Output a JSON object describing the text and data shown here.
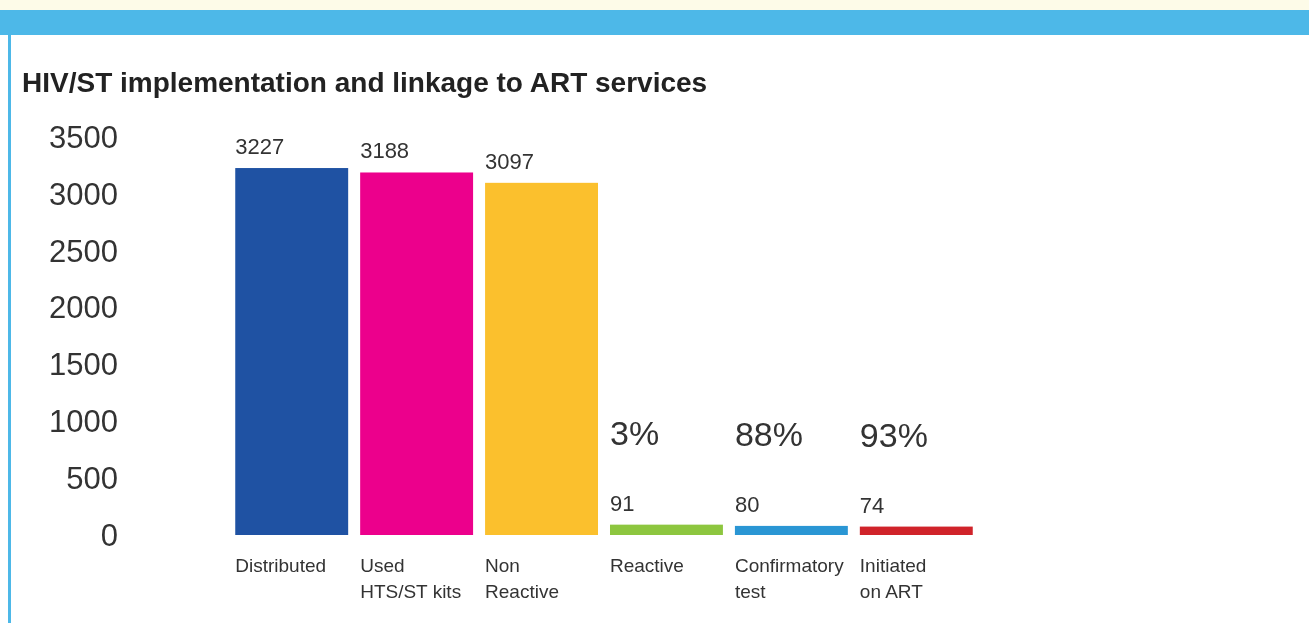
{
  "chart_data": {
    "type": "bar",
    "title": "HIV/ST implementation and linkage to ART services",
    "categories": [
      "Distributed",
      "Used\nHTS/ST kits",
      "Non\nReactive",
      "Reactive",
      "Confirmatory\ntest",
      "Initiated\non ART"
    ],
    "values": [
      3227,
      3188,
      3097,
      91,
      80,
      74
    ],
    "colors": [
      "#1f52a3",
      "#ec008c",
      "#fbc02d",
      "#8dc63f",
      "#2a96d4",
      "#d0232a"
    ],
    "ylim": [
      0,
      3500
    ],
    "yticks": [
      0,
      500,
      1000,
      1500,
      2000,
      2500,
      3000,
      3500
    ],
    "data_labels": true,
    "grid": false,
    "annotations": [
      "3%",
      "88%",
      "93%"
    ]
  }
}
